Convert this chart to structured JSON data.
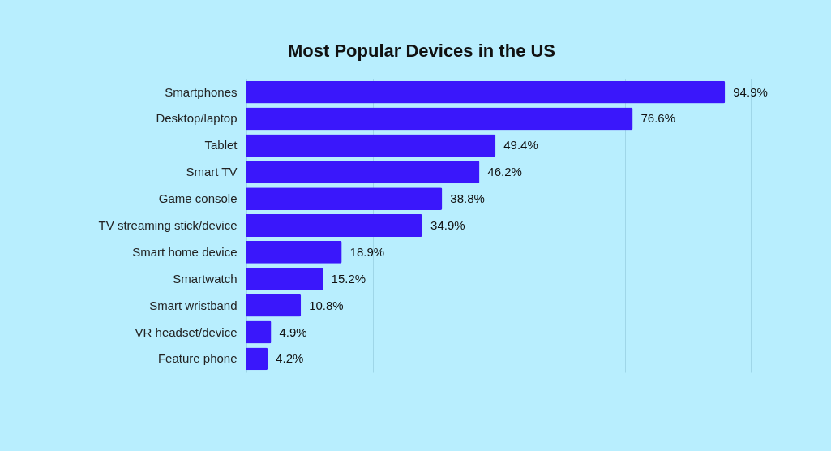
{
  "chart_data": {
    "type": "bar",
    "orientation": "horizontal",
    "title": "Most Popular Devices in the US",
    "categories": [
      "Smartphones",
      "Desktop/laptop",
      "Tablet",
      "Smart TV",
      "Game console",
      "TV streaming stick/device",
      "Smart home device",
      "Smartwatch",
      "Smart wristband",
      "VR headset/device",
      "Feature phone"
    ],
    "values": [
      94.9,
      76.6,
      49.4,
      46.2,
      38.8,
      34.9,
      18.9,
      15.2,
      10.8,
      4.9,
      4.2
    ],
    "value_labels": [
      "94.9%",
      "76.6%",
      "49.4%",
      "46.2%",
      "38.8%",
      "34.9%",
      "18.9%",
      "15.2%",
      "10.8%",
      "4.9%",
      "4.2%"
    ],
    "color": "#3a17fb",
    "xlim": [
      0,
      100
    ],
    "xticks": [
      {
        "value": 0,
        "label": null
      },
      {
        "value": 25,
        "label": null
      },
      {
        "value": 50,
        "label": null
      },
      {
        "value": 75,
        "label": null
      },
      {
        "value": 100,
        "label": null
      }
    ],
    "grid": "x",
    "tick_labels": "y"
  }
}
